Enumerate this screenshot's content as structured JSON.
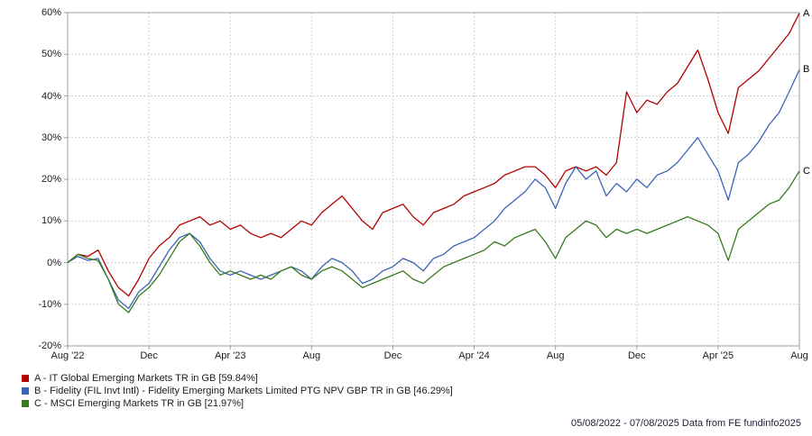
{
  "chart_data": {
    "type": "line",
    "title": "",
    "xlabel": "",
    "ylabel": "",
    "grid": true,
    "legend_position": "bottom-left",
    "x_unit": "months since Aug 2022",
    "xlim": [
      0,
      36
    ],
    "ylim": [
      -20,
      60
    ],
    "y_ticks": [
      60,
      50,
      40,
      30,
      20,
      10,
      0,
      -10,
      -20
    ],
    "y_tick_suffix": "%",
    "x_ticks": {
      "positions": [
        0,
        4,
        8,
        12,
        16,
        20,
        24,
        28,
        32,
        36
      ],
      "labels": [
        "Aug '22",
        "Dec",
        "Apr '23",
        "Aug",
        "Dec",
        "Apr '24",
        "Aug",
        "Dec",
        "Apr '25",
        "Aug"
      ]
    },
    "x": [
      0,
      0.5,
      1,
      1.5,
      2,
      2.5,
      3,
      3.5,
      4,
      4.5,
      5,
      5.5,
      6,
      6.5,
      7,
      7.5,
      8,
      8.5,
      9,
      9.5,
      10,
      10.5,
      11,
      11.5,
      12,
      12.5,
      13,
      13.5,
      14,
      14.5,
      15,
      15.5,
      16,
      16.5,
      17,
      17.5,
      18,
      18.5,
      19,
      19.5,
      20,
      20.5,
      21,
      21.5,
      22,
      22.5,
      23,
      23.5,
      24,
      24.5,
      25,
      25.5,
      26,
      26.5,
      27,
      27.5,
      28,
      28.5,
      29,
      29.5,
      30,
      30.5,
      31,
      31.5,
      32,
      32.5,
      33,
      33.5,
      34,
      34.5,
      35,
      35.5,
      36
    ],
    "series": [
      {
        "id": "A",
        "end_label": "A",
        "label": "A - IT Global Emerging Markets TR in GB [59.84%]",
        "final_value": 59.84,
        "color": "#b30000",
        "values": [
          0,
          2,
          1.5,
          3,
          -2,
          -6,
          -8,
          -4,
          1,
          4,
          6,
          9,
          10,
          11,
          9,
          10,
          8,
          9,
          7,
          6,
          7,
          6,
          8,
          10,
          9,
          12,
          14,
          16,
          13,
          10,
          8,
          12,
          13,
          14,
          11,
          9,
          12,
          13,
          14,
          16,
          17,
          18,
          19,
          21,
          22,
          23,
          23,
          21,
          18,
          22,
          23,
          22,
          23,
          21,
          24,
          41,
          36,
          39,
          38,
          41,
          43,
          47,
          51,
          44,
          36,
          31,
          42,
          44,
          46,
          49,
          52,
          55,
          59.84
        ]
      },
      {
        "id": "B",
        "end_label": "B",
        "label": "B - Fidelity (FIL Invt Intl) - Fidelity Emerging Markets Limited PTG NPV GBP TR in GB [46.29%]",
        "final_value": 46.29,
        "color": "#3a64b5",
        "values": [
          0,
          1.5,
          0.5,
          1,
          -4,
          -9,
          -11,
          -7,
          -5,
          -1,
          3,
          6,
          7,
          5,
          1,
          -2,
          -3,
          -2,
          -3,
          -4,
          -3,
          -2,
          -1,
          -2,
          -4,
          -1,
          1,
          0,
          -2,
          -5,
          -4,
          -2,
          -1,
          1,
          0,
          -2,
          1,
          2,
          4,
          5,
          6,
          8,
          10,
          13,
          15,
          17,
          20,
          18,
          13,
          19,
          23,
          20,
          22,
          16,
          19,
          17,
          20,
          18,
          21,
          22,
          24,
          27,
          30,
          26,
          22,
          15,
          24,
          26,
          29,
          33,
          36,
          41,
          46.29
        ]
      },
      {
        "id": "C",
        "end_label": "C",
        "label": "C - MSCI Emerging Markets TR in GB [21.97%]",
        "final_value": 21.97,
        "color": "#387a1e",
        "values": [
          0,
          2,
          1,
          0.5,
          -4,
          -10,
          -12,
          -8,
          -6,
          -3,
          1,
          5,
          7,
          4,
          0,
          -3,
          -2,
          -3,
          -4,
          -3,
          -4,
          -2,
          -1,
          -3,
          -4,
          -2,
          -1,
          -2,
          -4,
          -6,
          -5,
          -4,
          -3,
          -2,
          -4,
          -5,
          -3,
          -1,
          0,
          1,
          2,
          3,
          5,
          4,
          6,
          7,
          8,
          5,
          1,
          6,
          8,
          10,
          9,
          6,
          8,
          7,
          8,
          7,
          8,
          9,
          10,
          11,
          10,
          9,
          7,
          0.5,
          8,
          10,
          12,
          14,
          15,
          18,
          21.97
        ]
      }
    ]
  },
  "footer": {
    "text": "05/08/2022 - 07/08/2025 Data from FE fundinfo2025"
  },
  "colors": {
    "grid": "#d0d0d0",
    "axis": "#9e9e9e",
    "text": "#1c1c1c"
  }
}
